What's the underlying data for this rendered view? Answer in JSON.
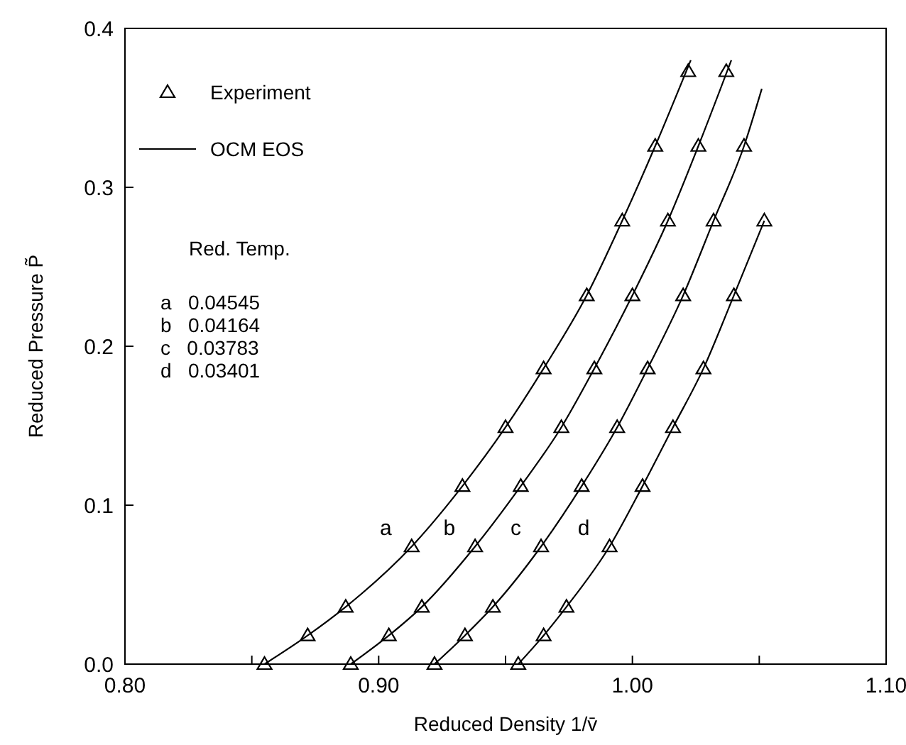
{
  "chart_data": {
    "type": "scatter",
    "xlabel": "Reduced Density 1/v̄",
    "ylabel": "Reduced Pressure P̃",
    "xlim": [
      0.8,
      1.1
    ],
    "ylim": [
      0,
      0.4
    ],
    "xticks": [
      {
        "value": 0.8,
        "label": "0.80"
      },
      {
        "value": 0.85,
        "label": null
      },
      {
        "value": 0.9,
        "label": "0.90"
      },
      {
        "value": 0.95,
        "label": null
      },
      {
        "value": 1.0,
        "label": "1.00"
      },
      {
        "value": 1.05,
        "label": null
      },
      {
        "value": 1.1,
        "label": "1.10"
      }
    ],
    "yticks": [
      {
        "value": 0,
        "label": "0.0"
      },
      0.1,
      0.2,
      0.3,
      0.4
    ],
    "legend": "top left",
    "grid": false,
    "series": [
      {
        "name": "Experiment",
        "marker": "triangle",
        "color": "#000000",
        "x": [
          0.855,
          0.872,
          0.887,
          0.913,
          0.933,
          0.95,
          0.965,
          0.982,
          0.996,
          1.009,
          1.022
        ],
        "values": [
          0,
          0.018,
          0.036,
          0.074,
          0.112,
          0.149,
          0.186,
          0.232,
          0.279,
          0.326,
          0.373
        ]
      },
      {
        "marker": "triangle",
        "color": "#000000",
        "x": [
          0.889,
          0.904,
          0.917,
          0.938,
          0.956,
          0.972,
          0.985,
          1.0,
          1.014,
          1.026,
          1.037
        ],
        "values": [
          0,
          0.018,
          0.036,
          0.074,
          0.112,
          0.149,
          0.186,
          0.232,
          0.279,
          0.326,
          0.373
        ]
      },
      {
        "marker": "triangle",
        "color": "#000000",
        "x": [
          0.922,
          0.934,
          0.945,
          0.964,
          0.98,
          0.994,
          1.006,
          1.02,
          1.032,
          1.044
        ],
        "values": [
          0,
          0.018,
          0.036,
          0.074,
          0.112,
          0.149,
          0.186,
          0.232,
          0.279,
          0.326
        ]
      },
      {
        "marker": "triangle",
        "color": "#000000",
        "x": [
          0.955,
          0.965,
          0.974,
          0.991,
          1.004,
          1.016,
          1.028,
          1.04,
          1.052
        ],
        "values": [
          0,
          0.018,
          0.036,
          0.074,
          0.112,
          0.149,
          0.186,
          0.232,
          0.279
        ]
      },
      {
        "type": "line",
        "marker": "none",
        "name": "OCM EOS",
        "color": "#000000",
        "x": [
          0.855,
          0.872,
          0.887,
          0.913,
          0.933,
          0.95,
          0.965,
          0.982,
          0.996,
          1.009,
          1.023
        ],
        "values": [
          0,
          0.018,
          0.036,
          0.074,
          0.112,
          0.149,
          0.186,
          0.232,
          0.279,
          0.326,
          0.38
        ]
      },
      {
        "type": "line",
        "marker": "none",
        "color": "#000000",
        "x": [
          0.889,
          0.904,
          0.917,
          0.938,
          0.956,
          0.972,
          0.985,
          1.0,
          1.014,
          1.026,
          1.039
        ],
        "values": [
          0,
          0.018,
          0.036,
          0.074,
          0.112,
          0.149,
          0.186,
          0.232,
          0.279,
          0.326,
          0.38
        ]
      },
      {
        "type": "line",
        "marker": "none",
        "color": "#000000",
        "x": [
          0.922,
          0.934,
          0.945,
          0.964,
          0.98,
          0.994,
          1.006,
          1.02,
          1.032,
          1.044,
          1.051
        ],
        "values": [
          0,
          0.018,
          0.036,
          0.074,
          0.112,
          0.149,
          0.186,
          0.232,
          0.279,
          0.326,
          0.362
        ]
      },
      {
        "type": "line",
        "marker": "none",
        "color": "#000000",
        "x": [
          0.955,
          0.965,
          0.974,
          0.991,
          1.004,
          1.016,
          1.028,
          1.04,
          1.052
        ],
        "values": [
          0,
          0.018,
          0.036,
          0.074,
          0.112,
          0.149,
          0.186,
          0.232,
          0.279
        ]
      }
    ],
    "annotations": [
      "a",
      "b",
      "c",
      "d",
      "Red. Temp.",
      "a   0.04545",
      "b   0.04164",
      "c   0.03783",
      "d   0.03401"
    ]
  }
}
